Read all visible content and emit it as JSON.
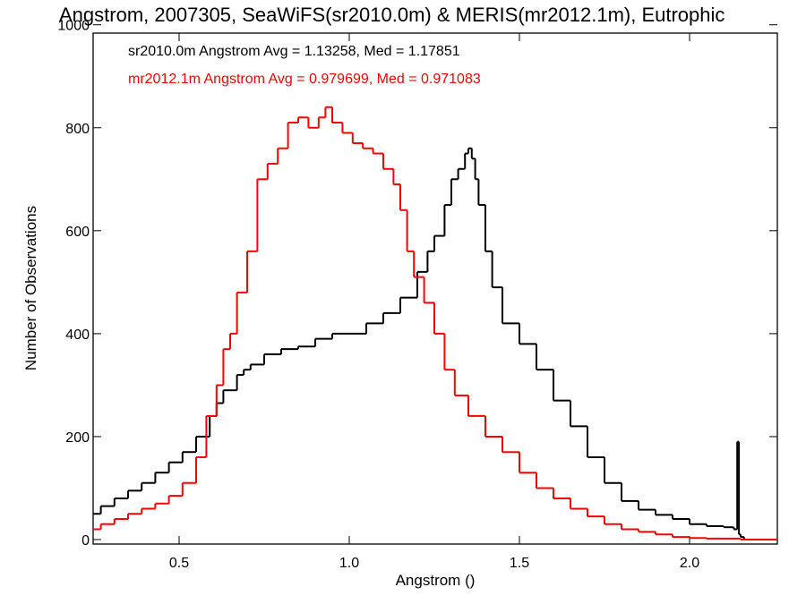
{
  "chart_data": {
    "type": "line",
    "title": "Angstrom, 2007305, SeaWiFS(sr2010.0m) & MERIS(mr2012.1m), Eutrophic",
    "xlabel": "Angstrom ()",
    "ylabel": "Number of Observations",
    "xlim": [
      0.23,
      2.25
    ],
    "ylim": [
      0,
      1000
    ],
    "xticks": [
      "0.5",
      "1.0",
      "1.5",
      "2.0"
    ],
    "yticks": [
      "0",
      "200",
      "400",
      "600",
      "800",
      "1000"
    ],
    "grid": false,
    "legend_position": "top-left",
    "annotations": [
      {
        "text": "sr2010.0m Angstrom Avg = 1.13258, Med = 1.17851",
        "color": "#000000"
      },
      {
        "text": "mr2012.1m Angstrom Avg = 0.979699, Med = 0.971083",
        "color": "#ff0000"
      }
    ],
    "series": [
      {
        "name": "sr2010.0m",
        "color": "#000000",
        "x": [
          0.23,
          0.27,
          0.31,
          0.35,
          0.39,
          0.43,
          0.47,
          0.51,
          0.55,
          0.59,
          0.61,
          0.63,
          0.65,
          0.67,
          0.69,
          0.71,
          0.75,
          0.8,
          0.85,
          0.9,
          0.95,
          1.0,
          1.05,
          1.1,
          1.15,
          1.2,
          1.23,
          1.25,
          1.28,
          1.3,
          1.32,
          1.34,
          1.35,
          1.36,
          1.37,
          1.38,
          1.4,
          1.42,
          1.45,
          1.5,
          1.55,
          1.6,
          1.65,
          1.7,
          1.75,
          1.8,
          1.85,
          1.9,
          1.95,
          2.0,
          2.05,
          2.1,
          2.13,
          2.14,
          2.145,
          2.15,
          2.16,
          2.2,
          2.25
        ],
        "y": [
          50,
          65,
          80,
          95,
          110,
          130,
          150,
          170,
          200,
          240,
          265,
          290,
          290,
          320,
          330,
          340,
          360,
          370,
          375,
          390,
          400,
          400,
          420,
          440,
          470,
          520,
          560,
          590,
          650,
          700,
          720,
          750,
          760,
          740,
          700,
          650,
          560,
          490,
          420,
          380,
          330,
          270,
          220,
          160,
          110,
          75,
          58,
          48,
          40,
          30,
          26,
          24,
          20,
          190,
          10,
          5,
          0,
          0,
          0
        ]
      },
      {
        "name": "mr2012.1m",
        "color": "#ff0000",
        "x": [
          0.23,
          0.27,
          0.31,
          0.35,
          0.39,
          0.43,
          0.47,
          0.51,
          0.55,
          0.58,
          0.61,
          0.63,
          0.65,
          0.67,
          0.7,
          0.73,
          0.76,
          0.79,
          0.82,
          0.85,
          0.88,
          0.91,
          0.93,
          0.95,
          0.98,
          1.01,
          1.04,
          1.07,
          1.1,
          1.13,
          1.15,
          1.17,
          1.19,
          1.22,
          1.25,
          1.28,
          1.31,
          1.35,
          1.4,
          1.45,
          1.5,
          1.55,
          1.6,
          1.65,
          1.7,
          1.75,
          1.8,
          1.85,
          1.9,
          1.95,
          2.0,
          2.05,
          2.1,
          2.15,
          2.2,
          2.25
        ],
        "y": [
          20,
          30,
          40,
          50,
          60,
          70,
          85,
          110,
          160,
          240,
          300,
          370,
          400,
          480,
          560,
          700,
          730,
          760,
          810,
          820,
          800,
          820,
          840,
          810,
          790,
          770,
          760,
          750,
          720,
          690,
          640,
          560,
          510,
          460,
          400,
          330,
          280,
          240,
          200,
          170,
          130,
          100,
          80,
          60,
          45,
          30,
          20,
          15,
          10,
          5,
          3,
          2,
          2,
          0,
          0,
          0
        ]
      }
    ]
  }
}
